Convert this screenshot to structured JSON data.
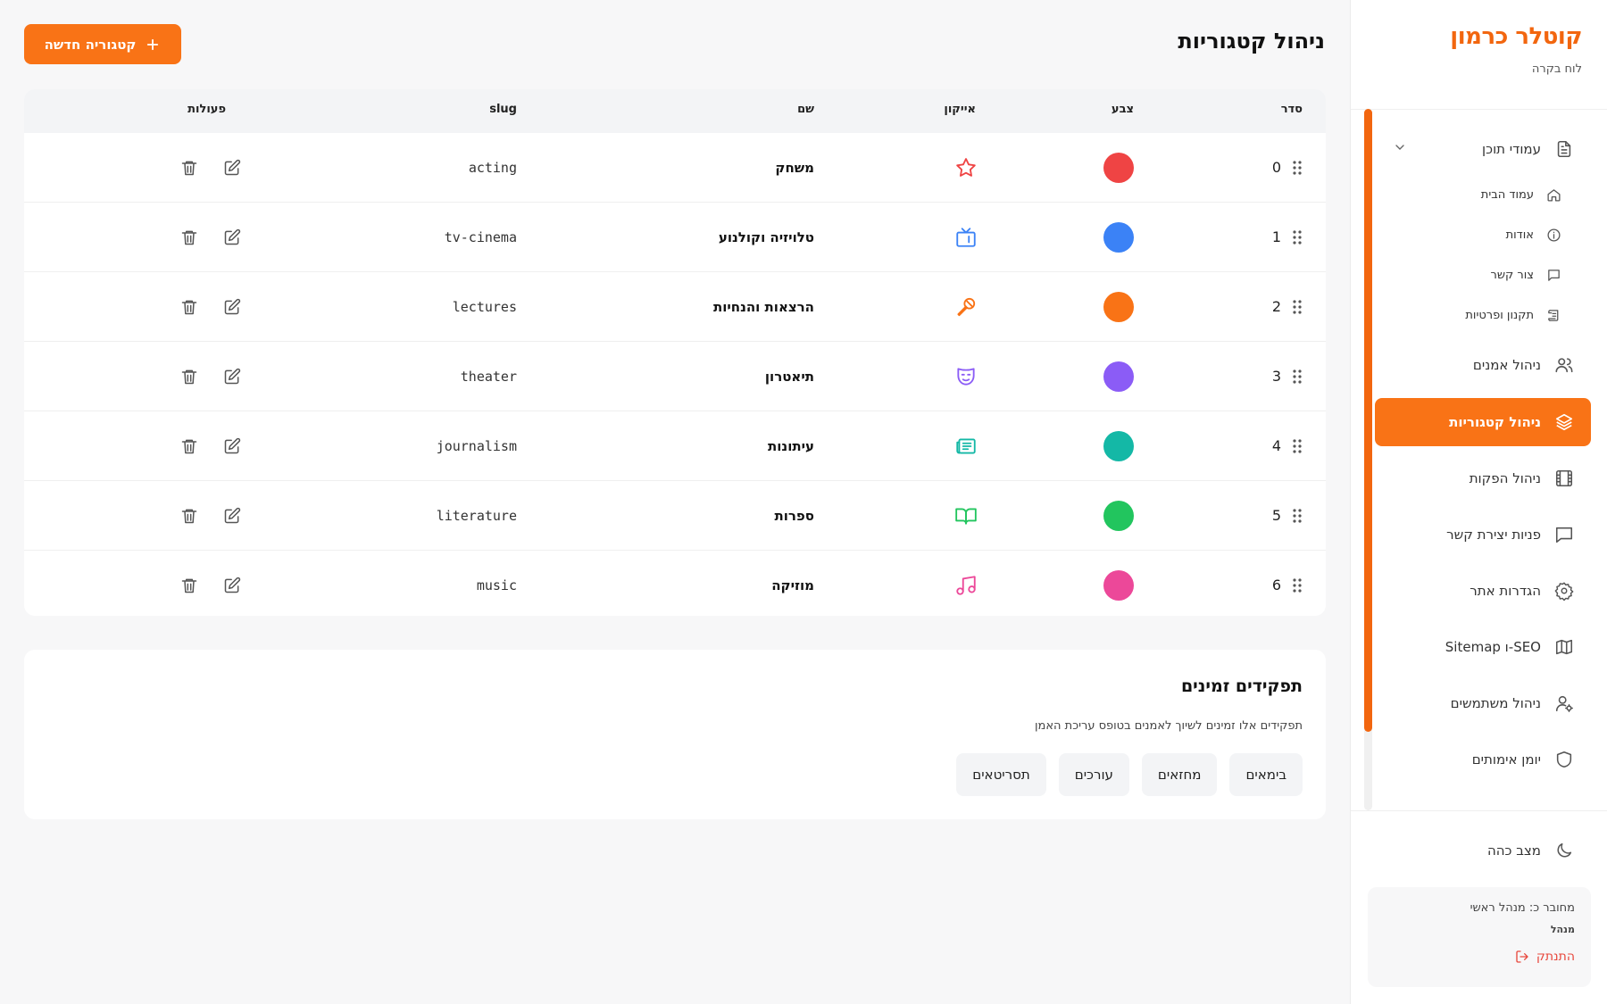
{
  "brand": {
    "name": "קוטלר כרמון",
    "subtitle": "לוח בקרה"
  },
  "sidebar": {
    "content_pages": {
      "label": "עמודי תוכן",
      "icon": "file-text-icon"
    },
    "sub_items": [
      {
        "label": "עמוד הבית",
        "icon": "home-icon"
      },
      {
        "label": "אודות",
        "icon": "info-icon"
      },
      {
        "label": "צור קשר",
        "icon": "message-icon"
      },
      {
        "label": "תקנון ופרטיות",
        "icon": "scroll-icon"
      }
    ],
    "items": [
      {
        "label": "ניהול אמנים",
        "icon": "users-icon"
      },
      {
        "label": "ניהול קטגוריות",
        "icon": "layers-icon",
        "active": true
      },
      {
        "label": "ניהול הפקות",
        "icon": "film-icon"
      },
      {
        "label": "פניות יצירת קשר",
        "icon": "message-square-icon"
      },
      {
        "label": "הגדרות אתר",
        "icon": "gear-icon"
      },
      {
        "label": "SEO-ו Sitemap",
        "icon": "map-icon"
      },
      {
        "label": "ניהול משתמשים",
        "icon": "user-cog-icon"
      },
      {
        "label": "יומן אימותים",
        "icon": "shield-icon"
      }
    ],
    "dark_mode": {
      "label": "מצב כהה",
      "icon": "moon-icon"
    },
    "user": {
      "connected_as": "מחובר כ: מנהל ראשי",
      "role": "מנהל",
      "logout": "התנתק"
    }
  },
  "main": {
    "title": "ניהול קטגוריות",
    "new_button": "קטגוריה חדשה",
    "table": {
      "headers": {
        "order": "סדר",
        "color": "צבע",
        "icon": "אייקון",
        "name": "שם",
        "slug": "slug",
        "actions": "פעולות"
      },
      "rows": [
        {
          "order": "0",
          "color": "#ef4444",
          "icon": "star-icon",
          "icon_color": "#ef4444",
          "name": "משחק",
          "slug": "acting"
        },
        {
          "order": "1",
          "color": "#3b82f6",
          "icon": "tv-icon",
          "icon_color": "#3b82f6",
          "name": "טלויזיה וקולנוע",
          "slug": "tv-cinema"
        },
        {
          "order": "2",
          "color": "#f97316",
          "icon": "mic-icon",
          "icon_color": "#f97316",
          "name": "הרצאות והנחיות",
          "slug": "lectures"
        },
        {
          "order": "3",
          "color": "#8b5cf6",
          "icon": "theater-mask-icon",
          "icon_color": "#8b5cf6",
          "name": "תיאטרון",
          "slug": "theater"
        },
        {
          "order": "4",
          "color": "#14b8a6",
          "icon": "newspaper-icon",
          "icon_color": "#14b8a6",
          "name": "עיתונות",
          "slug": "journalism"
        },
        {
          "order": "5",
          "color": "#22c55e",
          "icon": "book-open-icon",
          "icon_color": "#22c55e",
          "name": "ספרות",
          "slug": "literature"
        },
        {
          "order": "6",
          "color": "#ec4899",
          "icon": "music-icon",
          "icon_color": "#ec4899",
          "name": "מוזיקה",
          "slug": "music"
        }
      ]
    },
    "roles": {
      "title": "תפקידים זמינים",
      "description": "תפקידים אלו זמינים לשיוך לאמנים בטופס עריכת האמן",
      "chips": [
        "בימאים",
        "מחזאים",
        "עורכים",
        "תסריטאים"
      ]
    }
  },
  "colors": {
    "accent": "#f97316",
    "brand": "#f2660f",
    "danger": "#e8483d"
  }
}
